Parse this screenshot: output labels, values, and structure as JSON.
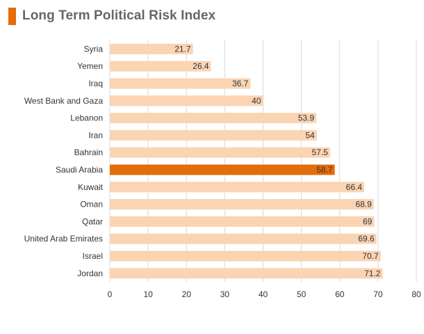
{
  "title": "Long Term Political Risk Index",
  "colors": {
    "accent": "#E46C0A",
    "bar": "#FBD4B4",
    "highlight": "#E46C0A",
    "grid": "#D9D9D9",
    "title_marker": "#E46C0A"
  },
  "chart_data": {
    "type": "bar",
    "orientation": "horizontal",
    "title": "Long Term Political Risk Index",
    "categories": [
      "Syria",
      "Yemen",
      "Iraq",
      "West Bank and Gaza",
      "Lebanon",
      "Iran",
      "Bahrain",
      "Saudi Arabia",
      "Kuwait",
      "Oman",
      "Qatar",
      "United Arab Emirates",
      "Israel",
      "Jordan"
    ],
    "values": [
      21.7,
      26.4,
      36.7,
      40,
      53.9,
      54,
      57.5,
      58.7,
      66.4,
      68.9,
      69,
      69.6,
      70.7,
      71.2
    ],
    "value_labels": [
      "21.7",
      "26.4",
      "36.7",
      "40",
      "53.9",
      "54",
      "57.5",
      "58.7",
      "66.4",
      "68.9",
      "69",
      "69.6",
      "70.7",
      "71.2"
    ],
    "highlight": "Saudi Arabia",
    "xlim": [
      0,
      80
    ],
    "xticks": [
      "0",
      "10",
      "20",
      "30",
      "40",
      "50",
      "60",
      "70",
      "80"
    ],
    "grid": true,
    "legend": "none"
  }
}
